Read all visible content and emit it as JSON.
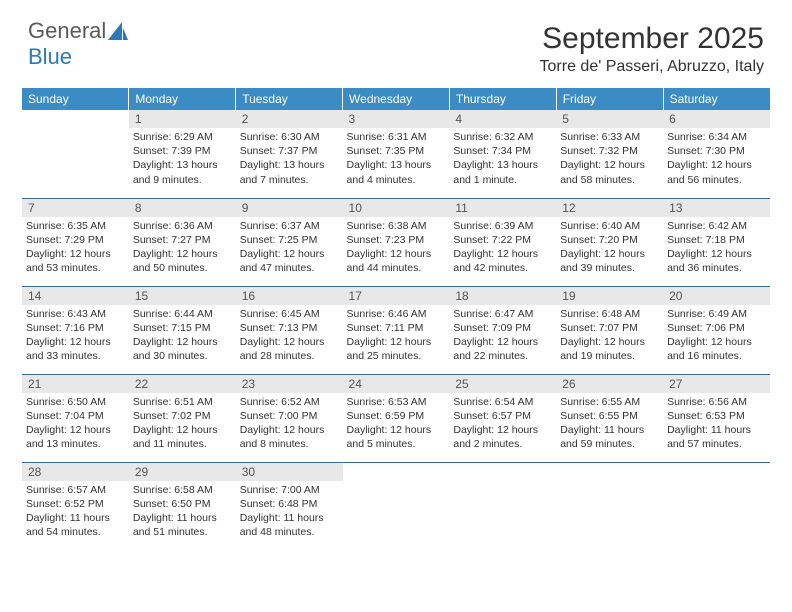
{
  "logo": {
    "text1": "General",
    "text2": "Blue"
  },
  "title": "September 2025",
  "location": "Torre de' Passeri, Abruzzo, Italy",
  "colors": {
    "header_bg": "#3b8bc4",
    "daynum_bg": "#e8e8e8",
    "row_border": "#3b6b8a",
    "logo_blue": "#2a7ab8"
  },
  "weekdays": [
    "Sunday",
    "Monday",
    "Tuesday",
    "Wednesday",
    "Thursday",
    "Friday",
    "Saturday"
  ],
  "weeks": [
    [
      null,
      {
        "n": "1",
        "sr": "6:29 AM",
        "ss": "7:39 PM",
        "dl": "13 hours and 9 minutes."
      },
      {
        "n": "2",
        "sr": "6:30 AM",
        "ss": "7:37 PM",
        "dl": "13 hours and 7 minutes."
      },
      {
        "n": "3",
        "sr": "6:31 AM",
        "ss": "7:35 PM",
        "dl": "13 hours and 4 minutes."
      },
      {
        "n": "4",
        "sr": "6:32 AM",
        "ss": "7:34 PM",
        "dl": "13 hours and 1 minute."
      },
      {
        "n": "5",
        "sr": "6:33 AM",
        "ss": "7:32 PM",
        "dl": "12 hours and 58 minutes."
      },
      {
        "n": "6",
        "sr": "6:34 AM",
        "ss": "7:30 PM",
        "dl": "12 hours and 56 minutes."
      }
    ],
    [
      {
        "n": "7",
        "sr": "6:35 AM",
        "ss": "7:29 PM",
        "dl": "12 hours and 53 minutes."
      },
      {
        "n": "8",
        "sr": "6:36 AM",
        "ss": "7:27 PM",
        "dl": "12 hours and 50 minutes."
      },
      {
        "n": "9",
        "sr": "6:37 AM",
        "ss": "7:25 PM",
        "dl": "12 hours and 47 minutes."
      },
      {
        "n": "10",
        "sr": "6:38 AM",
        "ss": "7:23 PM",
        "dl": "12 hours and 44 minutes."
      },
      {
        "n": "11",
        "sr": "6:39 AM",
        "ss": "7:22 PM",
        "dl": "12 hours and 42 minutes."
      },
      {
        "n": "12",
        "sr": "6:40 AM",
        "ss": "7:20 PM",
        "dl": "12 hours and 39 minutes."
      },
      {
        "n": "13",
        "sr": "6:42 AM",
        "ss": "7:18 PM",
        "dl": "12 hours and 36 minutes."
      }
    ],
    [
      {
        "n": "14",
        "sr": "6:43 AM",
        "ss": "7:16 PM",
        "dl": "12 hours and 33 minutes."
      },
      {
        "n": "15",
        "sr": "6:44 AM",
        "ss": "7:15 PM",
        "dl": "12 hours and 30 minutes."
      },
      {
        "n": "16",
        "sr": "6:45 AM",
        "ss": "7:13 PM",
        "dl": "12 hours and 28 minutes."
      },
      {
        "n": "17",
        "sr": "6:46 AM",
        "ss": "7:11 PM",
        "dl": "12 hours and 25 minutes."
      },
      {
        "n": "18",
        "sr": "6:47 AM",
        "ss": "7:09 PM",
        "dl": "12 hours and 22 minutes."
      },
      {
        "n": "19",
        "sr": "6:48 AM",
        "ss": "7:07 PM",
        "dl": "12 hours and 19 minutes."
      },
      {
        "n": "20",
        "sr": "6:49 AM",
        "ss": "7:06 PM",
        "dl": "12 hours and 16 minutes."
      }
    ],
    [
      {
        "n": "21",
        "sr": "6:50 AM",
        "ss": "7:04 PM",
        "dl": "12 hours and 13 minutes."
      },
      {
        "n": "22",
        "sr": "6:51 AM",
        "ss": "7:02 PM",
        "dl": "12 hours and 11 minutes."
      },
      {
        "n": "23",
        "sr": "6:52 AM",
        "ss": "7:00 PM",
        "dl": "12 hours and 8 minutes."
      },
      {
        "n": "24",
        "sr": "6:53 AM",
        "ss": "6:59 PM",
        "dl": "12 hours and 5 minutes."
      },
      {
        "n": "25",
        "sr": "6:54 AM",
        "ss": "6:57 PM",
        "dl": "12 hours and 2 minutes."
      },
      {
        "n": "26",
        "sr": "6:55 AM",
        "ss": "6:55 PM",
        "dl": "11 hours and 59 minutes."
      },
      {
        "n": "27",
        "sr": "6:56 AM",
        "ss": "6:53 PM",
        "dl": "11 hours and 57 minutes."
      }
    ],
    [
      {
        "n": "28",
        "sr": "6:57 AM",
        "ss": "6:52 PM",
        "dl": "11 hours and 54 minutes."
      },
      {
        "n": "29",
        "sr": "6:58 AM",
        "ss": "6:50 PM",
        "dl": "11 hours and 51 minutes."
      },
      {
        "n": "30",
        "sr": "7:00 AM",
        "ss": "6:48 PM",
        "dl": "11 hours and 48 minutes."
      },
      null,
      null,
      null,
      null
    ]
  ],
  "labels": {
    "sunrise": "Sunrise:",
    "sunset": "Sunset:",
    "daylight": "Daylight:"
  }
}
